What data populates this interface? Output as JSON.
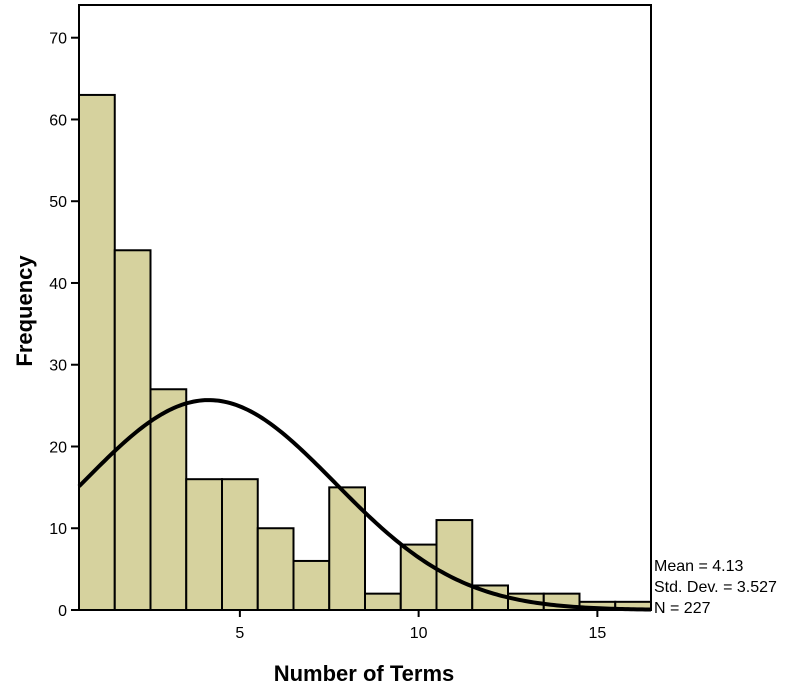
{
  "chart_data": {
    "type": "bar",
    "subtype": "histogram",
    "xlabel": "Number of Terms",
    "ylabel": "Frequency",
    "xlim": [
      0.5,
      16.5
    ],
    "ylim": [
      0,
      74
    ],
    "x_ticks": [
      5,
      10,
      15
    ],
    "y_ticks": [
      0,
      10,
      20,
      30,
      40,
      50,
      60,
      70
    ],
    "bar_color": "#d6d29e",
    "bins": [
      {
        "from": 0.5,
        "to": 1.5,
        "count": 63
      },
      {
        "from": 1.5,
        "to": 2.5,
        "count": 44
      },
      {
        "from": 2.5,
        "to": 3.5,
        "count": 27
      },
      {
        "from": 3.5,
        "to": 4.5,
        "count": 16
      },
      {
        "from": 4.5,
        "to": 5.5,
        "count": 16
      },
      {
        "from": 5.5,
        "to": 6.5,
        "count": 10
      },
      {
        "from": 6.5,
        "to": 7.5,
        "count": 6
      },
      {
        "from": 7.5,
        "to": 8.5,
        "count": 15
      },
      {
        "from": 8.5,
        "to": 9.5,
        "count": 2
      },
      {
        "from": 9.5,
        "to": 10.5,
        "count": 8
      },
      {
        "from": 10.5,
        "to": 11.5,
        "count": 11
      },
      {
        "from": 11.5,
        "to": 12.5,
        "count": 3
      },
      {
        "from": 12.5,
        "to": 13.5,
        "count": 2
      },
      {
        "from": 13.5,
        "to": 14.5,
        "count": 2
      },
      {
        "from": 14.5,
        "to": 15.5,
        "count": 1
      },
      {
        "from": 15.5,
        "to": 16.5,
        "count": 1
      }
    ],
    "normal_curve": {
      "mean": 4.13,
      "std_dev": 3.527,
      "n": 227,
      "bin_width": 1
    },
    "stats": {
      "mean_text": "Mean = 4.13",
      "std_text": "Std. Dev. = 3.527",
      "n_text": "N = 227"
    },
    "grid": false,
    "legend": "none"
  }
}
